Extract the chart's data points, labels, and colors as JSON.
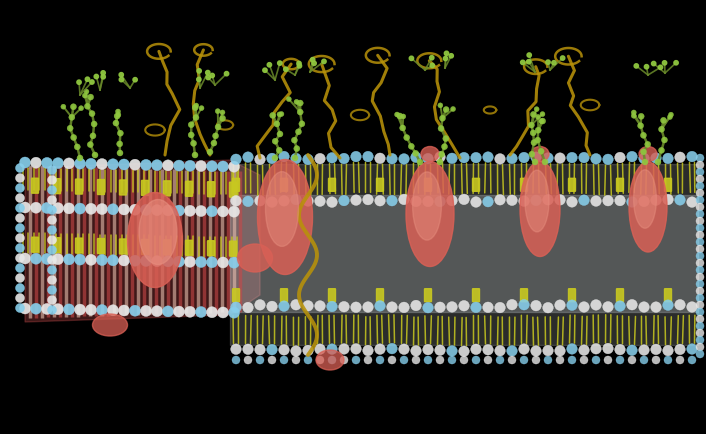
{
  "background_color": "#000000",
  "fig_width": 7.06,
  "fig_height": 4.34,
  "dpi": 100,
  "head_blue": "#87CEEB",
  "head_white": "#E8E8E8",
  "tail_yellow": "#C8C820",
  "tail_white": "#D8D8D8",
  "protein_red": "#D96055",
  "protein_light": "#E89080",
  "chain_green": "#6A8A2A",
  "bead_green": "#90C840",
  "chain_gold": "#B8920A",
  "chain_brown": "#8B6914",
  "interior_red": "#C84840",
  "interior_fill": "#D05050"
}
